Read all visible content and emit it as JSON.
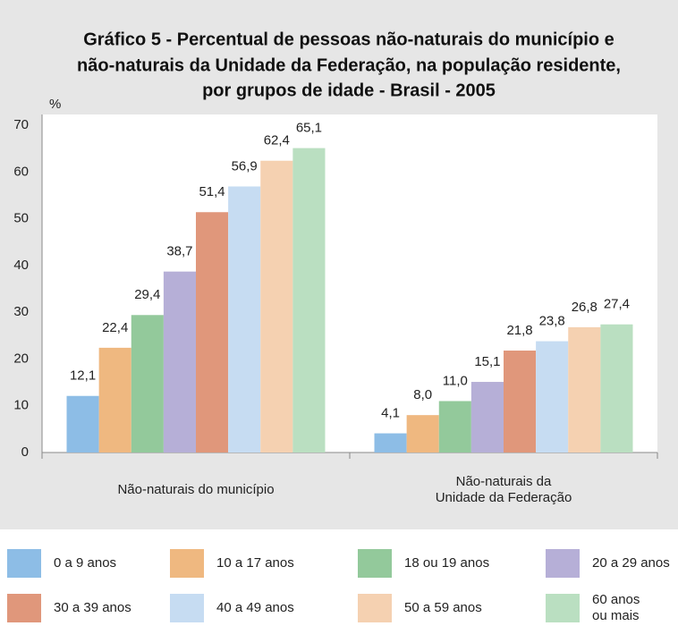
{
  "chart_data": {
    "type": "bar",
    "title": [
      "Gráfico 5 - Percentual de pessoas não-naturais do município e",
      "não-naturais da Unidade da Federação, na população residente,",
      "por grupos de idade - Brasil - 2005"
    ],
    "y_label": "%",
    "categories": [
      "Não-naturais do município",
      "Não-naturais da\nUnidade da Federação"
    ],
    "series": [
      {
        "name": "0 a 9 anos",
        "color": "#8dbde6",
        "values": [
          12.1,
          4.1
        ],
        "value_labels": [
          "12,1",
          "4,1"
        ]
      },
      {
        "name": "10 a 17 anos",
        "color": "#efb880",
        "values": [
          22.4,
          8.0
        ],
        "value_labels": [
          "22,4",
          "8,0"
        ]
      },
      {
        "name": "18 ou 19 anos",
        "color": "#93c99b",
        "values": [
          29.4,
          11.0
        ],
        "value_labels": [
          "29,4",
          "11,0"
        ]
      },
      {
        "name": "20 a 29 anos",
        "color": "#b6afd7",
        "values": [
          38.7,
          15.1
        ],
        "value_labels": [
          "38,7",
          "15,1"
        ]
      },
      {
        "name": "30 a 39 anos",
        "color": "#e0977b",
        "values": [
          51.4,
          21.8
        ],
        "value_labels": [
          "51,4",
          "21,8"
        ]
      },
      {
        "name": "40 a 49 anos",
        "color": "#c6dcf2",
        "values": [
          56.9,
          23.8
        ],
        "value_labels": [
          "56,9",
          "23,8"
        ]
      },
      {
        "name": "50 a 59 anos",
        "color": "#f5d1b1",
        "values": [
          62.4,
          26.8
        ],
        "value_labels": [
          "62,4",
          "26,8"
        ]
      },
      {
        "name": "60 anos\nou mais",
        "color": "#badfc1",
        "values": [
          65.1,
          27.4
        ],
        "value_labels": [
          "65,1",
          "27,4"
        ]
      }
    ],
    "ylim": [
      0,
      70
    ],
    "yticks": [
      0,
      10,
      20,
      30,
      40,
      50,
      60,
      70
    ],
    "grid": false
  }
}
